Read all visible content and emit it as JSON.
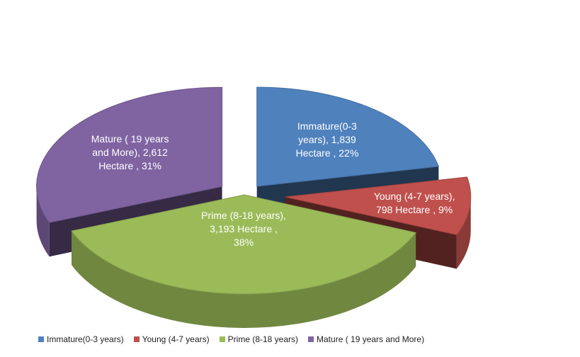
{
  "chart_data": {
    "type": "pie",
    "style": "3d-exploded",
    "title": "",
    "unit": "Hectare",
    "legend_position": "bottom",
    "slices": [
      {
        "name": "Immature(0-3 years)",
        "value": 1839,
        "percent": 22,
        "color": "#4F81BD",
        "label_lines": [
          "Immature(0-3",
          "years),  1,839",
          "Hectare , 22%"
        ]
      },
      {
        "name": "Young (4-7 years)",
        "value": 798,
        "percent": 9,
        "color": "#C0504D",
        "label_lines": [
          "Young (4-7 years),",
          "798 Hectare , 9%"
        ]
      },
      {
        "name": "Prime (8-18 years)",
        "value": 3193,
        "percent": 38,
        "color": "#9BBB59",
        "label_lines": [
          "Prime  (8-18 years),",
          "3,193 Hectare ,",
          "38%"
        ]
      },
      {
        "name": "Mature ( 19 years and More)",
        "value": 2612,
        "percent": 31,
        "color": "#8064A2",
        "label_lines": [
          "Mature ( 19 years",
          "and More),   2,612",
          "Hectare , 31%"
        ]
      }
    ],
    "legend": [
      "Immature(0-3 years)",
      "Young (4-7 years)",
      "Prime (8-18 years)",
      "Mature ( 19 years and More)"
    ]
  }
}
